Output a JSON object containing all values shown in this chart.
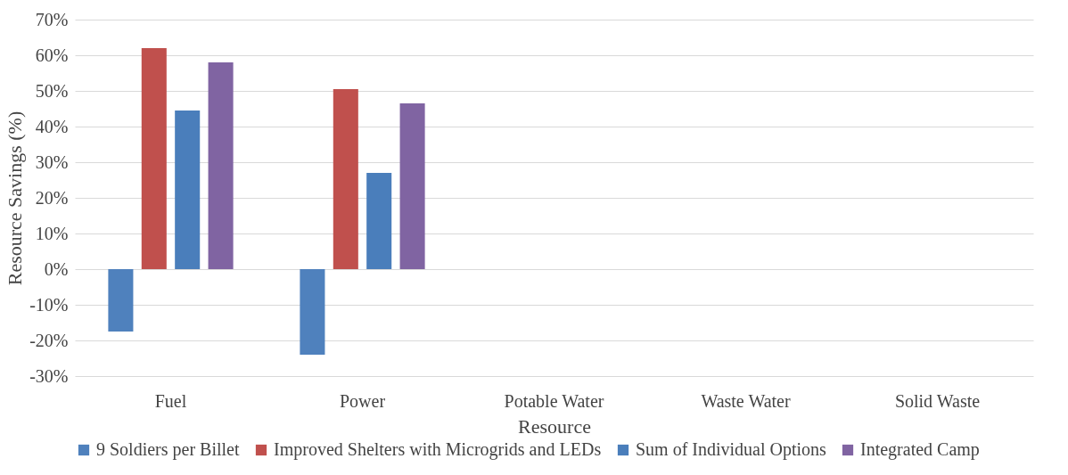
{
  "chart_data": {
    "type": "bar",
    "xlabel": "Resource",
    "ylabel": "Resource Savings (%)",
    "categories": [
      "Fuel",
      "Power",
      "Potable Water",
      "Waste Water",
      "Solid Waste"
    ],
    "series": [
      {
        "name": "9 Soldiers per Billet",
        "color": "#4f81bd",
        "values": [
          -17.5,
          -24,
          null,
          null,
          null
        ]
      },
      {
        "name": "Improved Shelters with Microgrids and LEDs",
        "color": "#c0504d",
        "values": [
          62,
          50.5,
          null,
          null,
          null
        ]
      },
      {
        "name": "Sum of Individual Options",
        "color": "#4a7ebb",
        "values": [
          44.5,
          27,
          null,
          null,
          null
        ]
      },
      {
        "name": "Integrated Camp",
        "color": "#8064a2",
        "values": [
          58,
          46.5,
          null,
          null,
          null
        ]
      }
    ],
    "ylim": [
      -30,
      70
    ],
    "yticks": [
      {
        "value": -30,
        "label": "-30%"
      },
      {
        "value": -20,
        "label": "-20%"
      },
      {
        "value": -10,
        "label": "-10%"
      },
      {
        "value": 0,
        "label": "0%"
      },
      {
        "value": 10,
        "label": "10%"
      },
      {
        "value": 20,
        "label": "20%"
      },
      {
        "value": 30,
        "label": "30%"
      },
      {
        "value": 40,
        "label": "40%"
      },
      {
        "value": 50,
        "label": "50%"
      },
      {
        "value": 60,
        "label": "60%"
      },
      {
        "value": 70,
        "label": "70%"
      }
    ],
    "grid": "y",
    "legend": "bottom"
  }
}
